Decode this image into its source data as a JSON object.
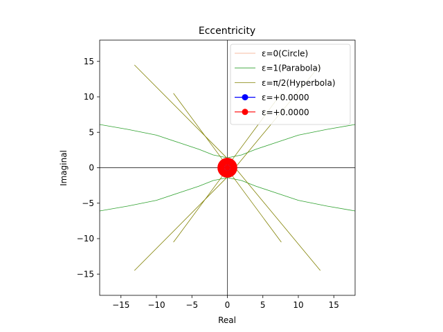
{
  "chart_data": {
    "type": "line",
    "title": "Eccentricity",
    "xlabel": "Real",
    "ylabel": "Imaginal",
    "xlim": [
      -18,
      18
    ],
    "ylim": [
      -18,
      18
    ],
    "xticks": [
      -15,
      -10,
      -5,
      0,
      5,
      10,
      15
    ],
    "yticks": [
      -15,
      -10,
      -5,
      0,
      5,
      10,
      15
    ],
    "grid": false,
    "axis_lines_through_origin": true,
    "legend_position": "top-right",
    "series": [
      {
        "name": "ε=0(Circle)",
        "color": "#f4a582",
        "curves": [
          [
            [
              0.0,
              1.2
            ],
            [
              0.35,
              1.15
            ],
            [
              0.7,
              0.97
            ],
            [
              0.97,
              0.7
            ],
            [
              1.15,
              0.35
            ],
            [
              1.2,
              0.0
            ],
            [
              1.15,
              -0.35
            ],
            [
              0.97,
              -0.7
            ],
            [
              0.7,
              -0.97
            ],
            [
              0.35,
              -1.15
            ],
            [
              0.0,
              -1.2
            ],
            [
              -0.35,
              -1.15
            ],
            [
              -0.7,
              -0.97
            ],
            [
              -0.97,
              -0.7
            ],
            [
              -1.15,
              -0.35
            ],
            [
              -1.2,
              0.0
            ],
            [
              -1.15,
              0.35
            ],
            [
              -0.97,
              0.7
            ],
            [
              -0.7,
              0.97
            ],
            [
              -0.35,
              1.15
            ],
            [
              0.0,
              1.2
            ]
          ]
        ]
      },
      {
        "name": "ε=1(Parabola)",
        "color": "#2ca02c",
        "curves": [
          [
            [
              -18,
              6.1
            ],
            [
              -14,
              5.4
            ],
            [
              -10,
              4.6
            ],
            [
              -7,
              3.6
            ],
            [
              -4,
              2.6
            ],
            [
              -2,
              1.8
            ],
            [
              0,
              1.4
            ],
            [
              2,
              1.8
            ],
            [
              4,
              2.6
            ],
            [
              7,
              3.6
            ],
            [
              10,
              4.6
            ],
            [
              14,
              5.4
            ],
            [
              18,
              6.1
            ]
          ],
          [
            [
              -18,
              -6.1
            ],
            [
              -14,
              -5.4
            ],
            [
              -10,
              -4.6
            ],
            [
              -7,
              -3.6
            ],
            [
              -4,
              -2.6
            ],
            [
              -2,
              -1.8
            ],
            [
              0,
              -1.4
            ],
            [
              2,
              -1.8
            ],
            [
              4,
              -2.6
            ],
            [
              7,
              -3.6
            ],
            [
              10,
              -4.6
            ],
            [
              14,
              -5.4
            ],
            [
              18,
              -6.1
            ]
          ]
        ]
      },
      {
        "name": "ε=π/2(Hyperbola)",
        "color": "#808000",
        "curves": [
          [
            [
              -13.1,
              14.5
            ],
            [
              0,
              1.3
            ],
            [
              13.1,
              -14.5
            ]
          ],
          [
            [
              -13.1,
              -14.5
            ],
            [
              0,
              -1.3
            ],
            [
              13.1,
              14.5
            ]
          ],
          [
            [
              -7.6,
              10.5
            ],
            [
              -0.8,
              1.3
            ],
            [
              0.8,
              -1.3
            ],
            [
              7.6,
              -10.5
            ]
          ],
          [
            [
              -7.6,
              -10.5
            ],
            [
              -0.8,
              -1.3
            ],
            [
              0.8,
              1.3
            ],
            [
              7.6,
              10.5
            ]
          ]
        ]
      },
      {
        "name": "ε=+0.0000",
        "color": "#0000ff",
        "marker": "circle",
        "points": [
          [
            0,
            0
          ]
        ]
      },
      {
        "name": "ε=+0.0000",
        "color": "#ff0000",
        "marker": "circle",
        "points": [
          [
            0,
            0
          ]
        ]
      }
    ],
    "annotations": [
      {
        "type": "ring",
        "color": "#ff0000",
        "center": [
          0,
          0
        ],
        "outer_radius": 1.4,
        "inner_radius": 0.4
      }
    ]
  }
}
